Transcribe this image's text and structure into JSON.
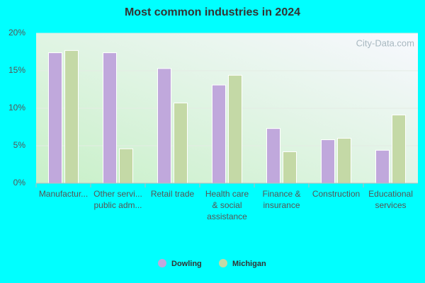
{
  "chart_data": {
    "type": "bar",
    "title": "Most common industries in 2024",
    "categories": [
      "Manufactur...",
      "Other servi...\npublic adm...",
      "Retail trade",
      "Health care\n& social\nassistance",
      "Finance &\ninsurance",
      "Construction",
      "Educational\nservices"
    ],
    "series": [
      {
        "name": "Dowling",
        "color": "#c0a8dc",
        "values": [
          17.4,
          17.4,
          15.3,
          13.1,
          7.3,
          5.8,
          4.4
        ]
      },
      {
        "name": "Michigan",
        "color": "#c4d9a6",
        "values": [
          17.7,
          4.6,
          10.7,
          14.4,
          4.2,
          6.0,
          9.1
        ]
      }
    ],
    "ylim": [
      0,
      20
    ],
    "yticks": [
      {
        "value": 0,
        "label": "0%"
      },
      {
        "value": 5,
        "label": "5%"
      },
      {
        "value": 10,
        "label": "10%"
      },
      {
        "value": 15,
        "label": "15%"
      },
      {
        "value": 20,
        "label": "20%"
      }
    ],
    "grid": true,
    "legend": "bottom",
    "watermark": "City-Data.com"
  }
}
